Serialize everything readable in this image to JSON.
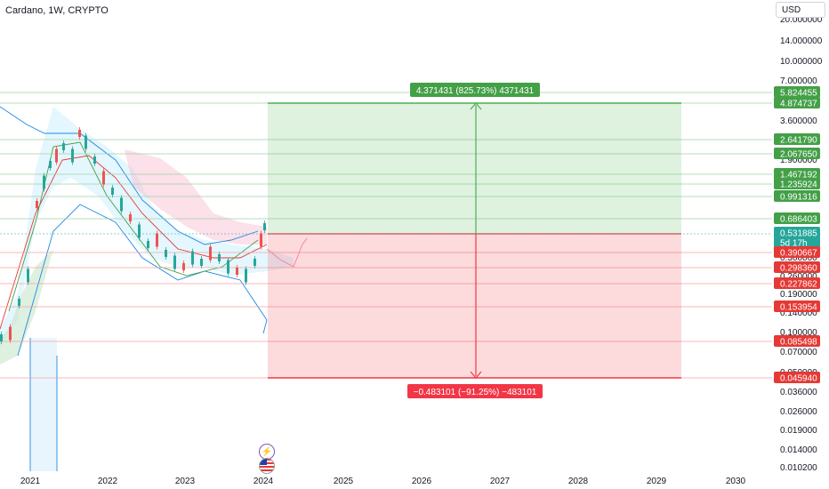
{
  "header": {
    "symbol_title": "Cardano, 1W, CRYPTO",
    "currency_button": "USD"
  },
  "price_axis": {
    "ticks": [
      "20.000000",
      "14.000000",
      "10.000000",
      "7.000000",
      "3.600000",
      "1.900000",
      "0.360000",
      "0.260000",
      "0.190000",
      "0.140000",
      "0.100000",
      "0.070000",
      "0.050000",
      "0.036000",
      "0.026000",
      "0.019000",
      "0.014000",
      "0.010200"
    ],
    "badges": [
      {
        "label": "5.824455",
        "color": "#43a047"
      },
      {
        "label": "4.874737",
        "color": "#43a047"
      },
      {
        "label": "2.641790",
        "color": "#43a047"
      },
      {
        "label": "2.067650",
        "color": "#43a047"
      },
      {
        "label": "1.467192",
        "color": "#43a047"
      },
      {
        "label": "1.235924",
        "color": "#43a047"
      },
      {
        "label": "0.991316",
        "color": "#43a047"
      },
      {
        "label": "0.686403",
        "color": "#43a047"
      },
      {
        "label": "0.531885",
        "color": "#26a69a"
      },
      {
        "label": "5d 17h",
        "color": "#26a69a"
      },
      {
        "label": "0.390667",
        "color": "#e53935"
      },
      {
        "label": "0.298360",
        "color": "#e53935"
      },
      {
        "label": "0.227862",
        "color": "#e53935"
      },
      {
        "label": "0.153954",
        "color": "#e53935"
      },
      {
        "label": "0.085498",
        "color": "#e53935"
      },
      {
        "label": "0.045940",
        "color": "#e53935"
      }
    ]
  },
  "time_axis": {
    "labels": [
      "2021",
      "2022",
      "2023",
      "2024",
      "2025",
      "2026",
      "2027",
      "2028",
      "2029",
      "2030"
    ]
  },
  "position_tool": {
    "target_label": "4.371431 (825.73%) 4371431",
    "stop_label": "−0.483101 (−91.25%) −483101",
    "profit_color": "#4caf50",
    "loss_color": "#f23645"
  },
  "events": {
    "lightning_icon": "lightning-icon",
    "flag_icon": "us-flag-icon"
  }
}
